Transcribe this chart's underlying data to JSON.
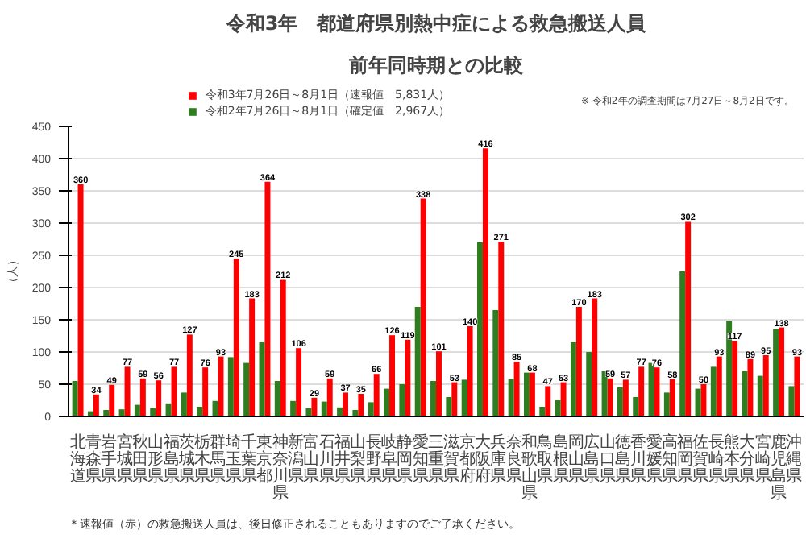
{
  "chart_data": {
    "type": "bar",
    "title": "令和3年　都道府県別熱中症による救急搬送人員",
    "subtitle": "前年同時期との比較",
    "ylabel": "（人）",
    "categories": [
      "北海道",
      "青森県",
      "岩手県",
      "宮城県",
      "秋田県",
      "山形県",
      "福島県",
      "茨城県",
      "栃木県",
      "群馬県",
      "埼玉県",
      "千葉県",
      "東京都",
      "神奈川県",
      "新潟県",
      "富山県",
      "石川県",
      "福井県",
      "山梨県",
      "長野県",
      "岐阜県",
      "静岡県",
      "愛知県",
      "三重県",
      "滋賀県",
      "京都府",
      "大阪府",
      "兵庫県",
      "奈良県",
      "和歌山県",
      "鳥取県",
      "島根県",
      "岡山県",
      "広島県",
      "山口県",
      "徳島県",
      "香川県",
      "愛媛県",
      "高知県",
      "福岡県",
      "佐賀県",
      "長崎県",
      "熊本県",
      "大分県",
      "宮崎県",
      "鹿児島県",
      "沖縄県"
    ],
    "series": [
      {
        "name": "令和3年7月26日～8月1日（速報値　5,831人）",
        "color": "#ff0000",
        "values": [
          360,
          34,
          49,
          77,
          59,
          56,
          77,
          127,
          76,
          93,
          245,
          183,
          364,
          212,
          106,
          29,
          59,
          37,
          35,
          66,
          126,
          119,
          338,
          101,
          53,
          140,
          416,
          271,
          85,
          68,
          47,
          53,
          170,
          183,
          59,
          57,
          77,
          76,
          58,
          302,
          50,
          93,
          117,
          89,
          95,
          138,
          93
        ],
        "value_labels": [
          "360",
          "34",
          "49",
          "77",
          "59",
          "56",
          "77",
          "127",
          "76",
          "93",
          "245",
          "183",
          "364",
          "212",
          "106",
          "29",
          "59",
          "37",
          "35",
          "66",
          "126",
          "119",
          "338",
          "101",
          "53",
          "140",
          "416",
          "271",
          "85",
          "68",
          "47",
          "53",
          "170",
          "183",
          "59",
          "57",
          "77",
          "76",
          "58",
          "302",
          "50",
          "93",
          "117",
          "89",
          "95",
          "138",
          "93"
        ]
      },
      {
        "name": "令和2年7月26日～8月1日（確定値　2,967人）",
        "color": "#2e7d1e",
        "values": [
          55,
          8,
          10,
          11,
          18,
          13,
          19,
          37,
          15,
          24,
          92,
          83,
          115,
          55,
          24,
          13,
          23,
          14,
          10,
          22,
          43,
          50,
          170,
          55,
          30,
          57,
          270,
          165,
          58,
          68,
          15,
          25,
          115,
          100,
          70,
          45,
          30,
          83,
          37,
          225,
          43,
          77,
          148,
          70,
          63,
          136,
          47
        ]
      }
    ],
    "ylim": [
      0,
      450
    ],
    "yticks": [
      0,
      50,
      100,
      150,
      200,
      250,
      300,
      350,
      400,
      450
    ],
    "grid": "y",
    "legend": "top",
    "annotations": [
      "※ 令和2年の調査期間は7月27日～8月2日です。",
      "＊速報値（赤）の救急搬送人員は、後日修正されることもありますのでご了承ください。"
    ]
  }
}
